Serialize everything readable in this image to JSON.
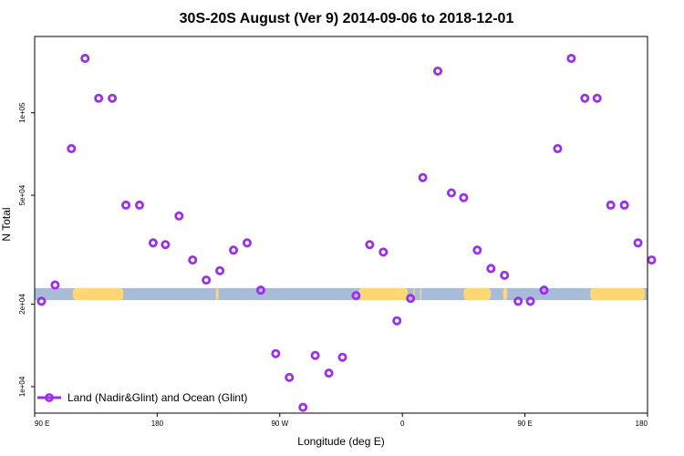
{
  "chart_data": {
    "type": "scatter",
    "title": "30S-20S August (Ver 9)   2014-09-06 to 2018-12-01",
    "xlabel": "Longitude (deg E)",
    "ylabel": "N Total",
    "x_ticks": [
      {
        "value": 90,
        "label": "90 E"
      },
      {
        "value": 180,
        "label": "180"
      },
      {
        "value": 270,
        "label": "90 W"
      },
      {
        "value": 360,
        "label": "0"
      },
      {
        "value": 450,
        "label": "90 E"
      },
      {
        "value": 540,
        "label": "180"
      }
    ],
    "y_ticks": [
      {
        "value": 10000,
        "label": "1e+04"
      },
      {
        "value": 20000,
        "label": "2e+04"
      },
      {
        "value": 50000,
        "label": "5e+04"
      },
      {
        "value": 100000,
        "label": "1e+05"
      }
    ],
    "xlim": [
      90,
      540
    ],
    "ylim": [
      8000,
      190000
    ],
    "y_scale": "log",
    "grid": false,
    "legend_position": "bottom-left",
    "series": [
      {
        "name": "Land (Nadir&Glint) and Ocean (Glint)",
        "color": "#9B30E8",
        "marker": "open-circle",
        "x": [
          95,
          105,
          117,
          127,
          137,
          147,
          157,
          167,
          177,
          186,
          196,
          206,
          216,
          226,
          236,
          246,
          256,
          267,
          277,
          287,
          296,
          306,
          316,
          326,
          336,
          346,
          356,
          366,
          375,
          386,
          396,
          405,
          415,
          425,
          435,
          445,
          454,
          464,
          474,
          484,
          494,
          503,
          513,
          523,
          533,
          543
        ],
        "y": [
          20500,
          23500,
          74000,
          158000,
          113000,
          113000,
          46000,
          46000,
          33500,
          33000,
          42000,
          29000,
          24500,
          26500,
          31500,
          33500,
          22500,
          13200,
          10800,
          8400,
          13000,
          11200,
          12800,
          21500,
          33000,
          31000,
          17400,
          21000,
          58000,
          142000,
          51000,
          49000,
          31500,
          27000,
          25500,
          20500,
          20500,
          22500,
          74000,
          158000,
          113000,
          113000,
          46000,
          46000,
          33500,
          29000
        ]
      }
    ],
    "background_band": {
      "y_range": [
        20700,
        22900
      ],
      "ocean_color": "#A8BCD8",
      "land_color": "#FFD875",
      "land_segments": [
        [
          118,
          155
        ],
        [
          152,
          153
        ],
        [
          223,
          225
        ],
        [
          328,
          364
        ],
        [
          368,
          369
        ],
        [
          373,
          374
        ],
        [
          405,
          425
        ],
        [
          434,
          437
        ],
        [
          498,
          538
        ]
      ]
    }
  }
}
